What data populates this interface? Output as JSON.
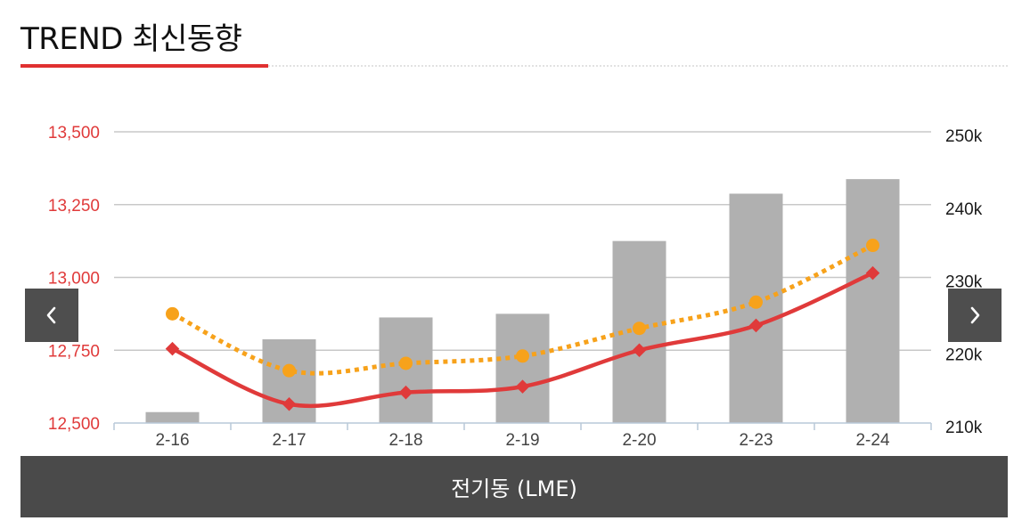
{
  "header": {
    "title": "TREND 최신동향"
  },
  "nav": {
    "prev_icon": "chevron-left-icon",
    "next_icon": "chevron-right-icon"
  },
  "caption": {
    "label": "전기동 (LME)"
  },
  "colors": {
    "accent": "#e03030",
    "line_primary": "#e03a3a",
    "line_secondary": "#f7a21b",
    "bar": "#b0b0b0"
  },
  "chart_data": {
    "type": "bar",
    "categories": [
      "2-16",
      "2-17",
      "2-18",
      "2-19",
      "2-20",
      "2-23",
      "2-24"
    ],
    "left_axis": {
      "ylim": [
        12500,
        13500
      ],
      "ticks": [
        "12,500",
        "12,750",
        "13,000",
        "13,250",
        "13,500"
      ],
      "tick_values": [
        12500,
        12750,
        13000,
        13250,
        13500
      ]
    },
    "right_axis": {
      "ylim": [
        210000,
        250000
      ],
      "ticks": [
        "210k",
        "220k",
        "230k",
        "240k",
        "250k"
      ],
      "tick_values": [
        210000,
        220000,
        230000,
        240000,
        250000
      ]
    },
    "series": [
      {
        "kind": "bar",
        "axis": "right",
        "values": [
          211500,
          221500,
          224500,
          225000,
          235000,
          241500,
          243500
        ]
      },
      {
        "kind": "line",
        "axis": "left",
        "style": "solid",
        "marker": "diamond",
        "values": [
          12755,
          12565,
          12605,
          12625,
          12750,
          12835,
          13015
        ]
      },
      {
        "kind": "line",
        "axis": "left",
        "style": "dotted",
        "marker": "circle",
        "values": [
          12875,
          12680,
          12705,
          12730,
          12825,
          12915,
          13110
        ]
      }
    ],
    "grid": true
  }
}
